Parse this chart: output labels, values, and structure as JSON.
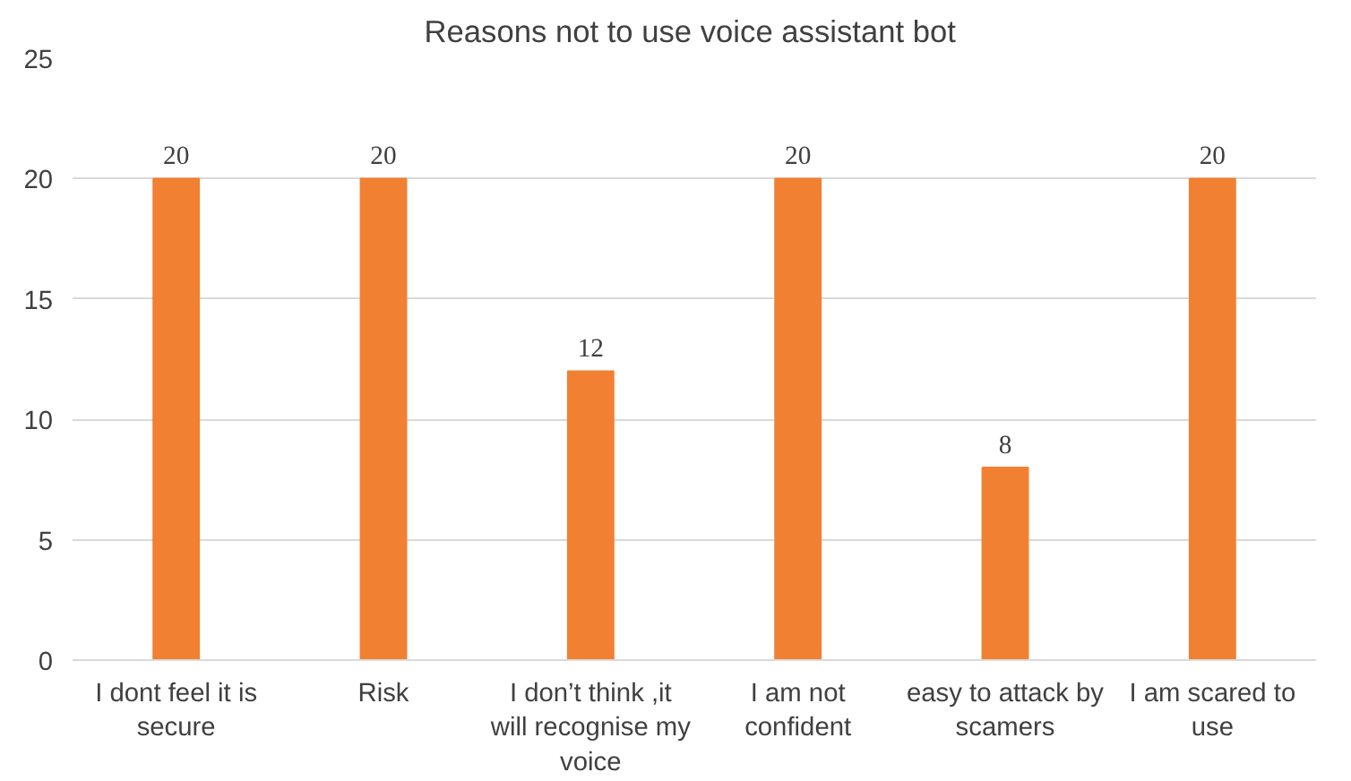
{
  "chart_data": {
    "type": "bar",
    "title": "Reasons not to  use voice assistant bot",
    "categories": [
      "I dont feel it is secure",
      "Risk",
      "I don’t think ,it will recognise my voice",
      "I am not confident",
      "easy to attack by scamers",
      "I am scared to use"
    ],
    "values": [
      20,
      20,
      12,
      20,
      8,
      20
    ],
    "color": "#f28033",
    "ylim": [
      0,
      25
    ],
    "yticks": [
      0,
      5,
      10,
      15,
      20,
      25
    ],
    "grid": "y",
    "data_labels": true
  }
}
